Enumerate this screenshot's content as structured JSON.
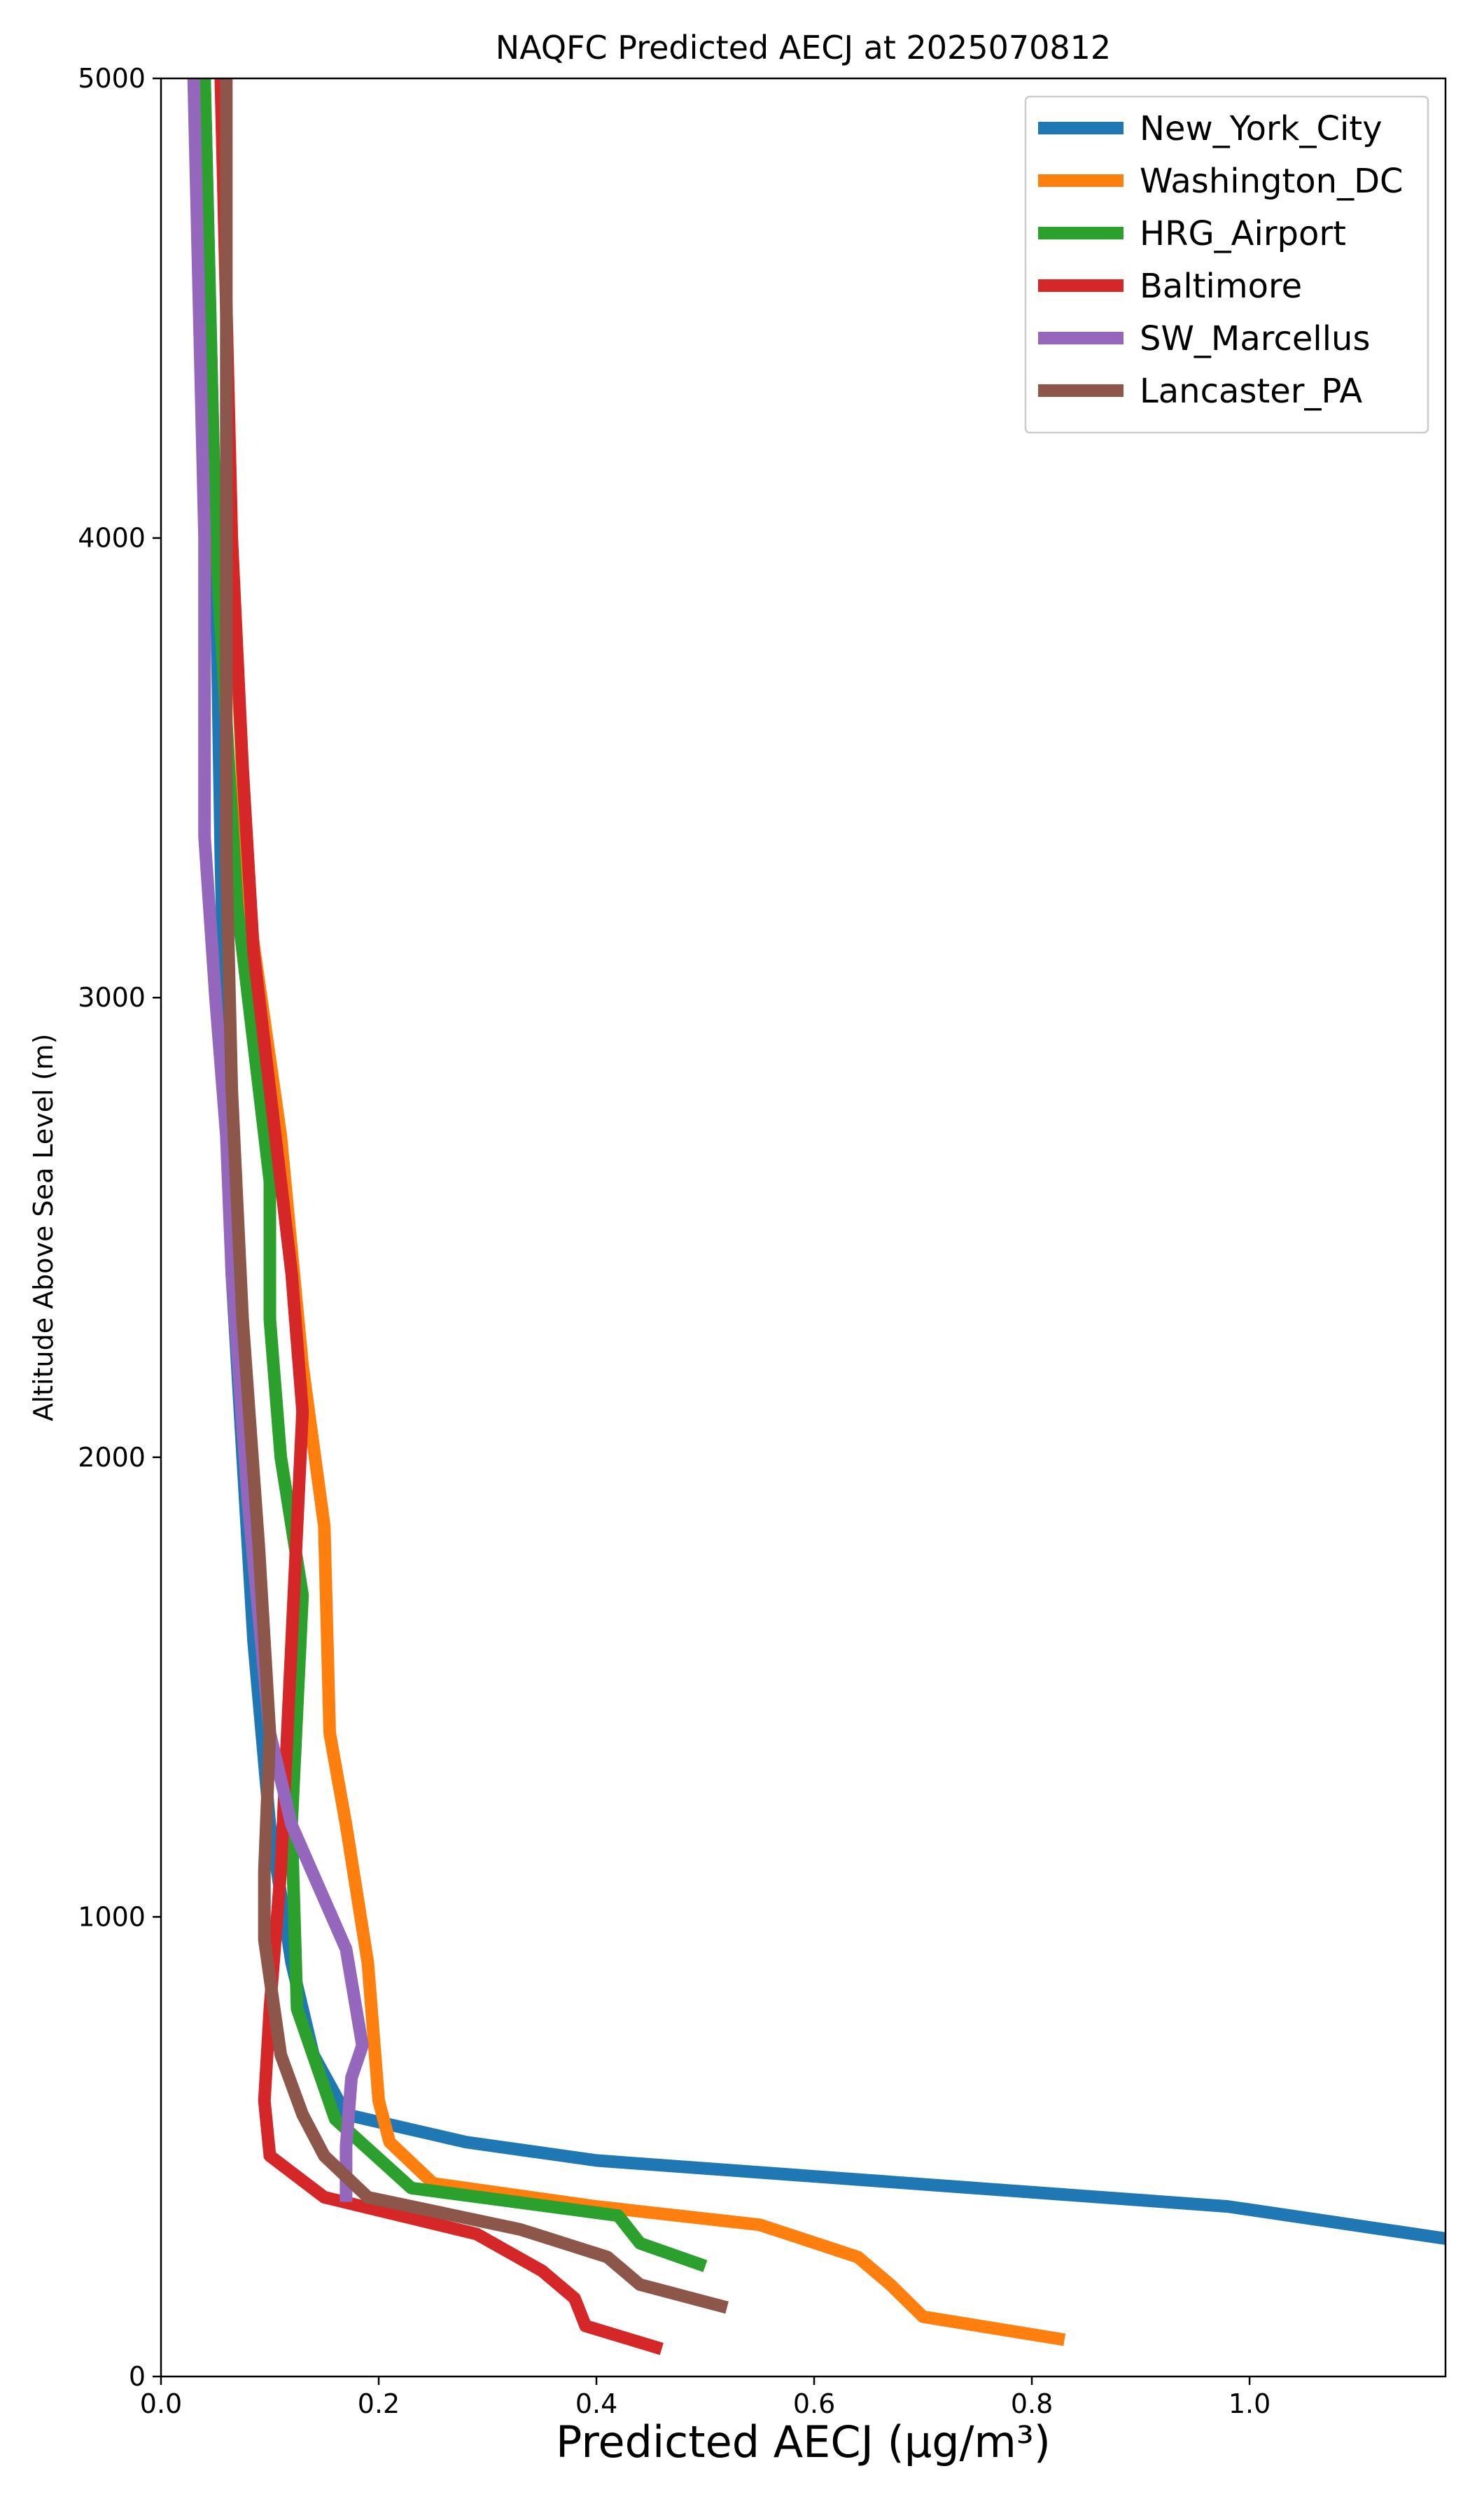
{
  "chart_data": {
    "type": "line",
    "title": "NAQFC Predicted AECJ at 2025070812",
    "xlabel": "Predicted AECJ (μg/m³)",
    "ylabel": "Altitude Above Sea Level (m)",
    "xlim": [
      0,
      1.18
    ],
    "ylim": [
      0,
      5000
    ],
    "xticks": [
      "0.0",
      "0.2",
      "0.4",
      "0.6",
      "0.8",
      "1.0"
    ],
    "yticks": [
      "0",
      "1000",
      "2000",
      "3000",
      "4000",
      "5000"
    ],
    "legend_position": "top-right",
    "grid": false,
    "series": [
      {
        "name": "New_York_City",
        "color": "#1f77b4",
        "points": [
          [
            1.18,
            300
          ],
          [
            0.98,
            370
          ],
          [
            0.4,
            470
          ],
          [
            0.28,
            510
          ],
          [
            0.17,
            570
          ],
          [
            0.14,
            700
          ],
          [
            0.12,
            900
          ],
          [
            0.1,
            1200
          ],
          [
            0.085,
            1600
          ],
          [
            0.075,
            2000
          ],
          [
            0.065,
            2400
          ],
          [
            0.06,
            2800
          ],
          [
            0.055,
            3300
          ],
          [
            0.05,
            4000
          ],
          [
            0.045,
            4500
          ],
          [
            0.04,
            5000
          ]
        ]
      },
      {
        "name": "Washington_DC",
        "color": "#ff7f0e",
        "points": [
          [
            0.83,
            80
          ],
          [
            0.7,
            130
          ],
          [
            0.67,
            200
          ],
          [
            0.64,
            260
          ],
          [
            0.55,
            330
          ],
          [
            0.4,
            370
          ],
          [
            0.25,
            420
          ],
          [
            0.21,
            510
          ],
          [
            0.2,
            600
          ],
          [
            0.19,
            900
          ],
          [
            0.17,
            1200
          ],
          [
            0.155,
            1400
          ],
          [
            0.15,
            1850
          ],
          [
            0.13,
            2200
          ],
          [
            0.11,
            2700
          ],
          [
            0.08,
            3200
          ],
          [
            0.065,
            4000
          ],
          [
            0.06,
            4500
          ],
          [
            0.055,
            5000
          ]
        ]
      },
      {
        "name": "HRG_Airport",
        "color": "#2ca02c",
        "points": [
          [
            0.5,
            240
          ],
          [
            0.44,
            290
          ],
          [
            0.42,
            350
          ],
          [
            0.23,
            410
          ],
          [
            0.16,
            560
          ],
          [
            0.125,
            800
          ],
          [
            0.12,
            1200
          ],
          [
            0.13,
            1700
          ],
          [
            0.11,
            2000
          ],
          [
            0.1,
            2300
          ],
          [
            0.1,
            2600
          ],
          [
            0.09,
            2800
          ],
          [
            0.07,
            3200
          ],
          [
            0.05,
            4000
          ],
          [
            0.045,
            4500
          ],
          [
            0.04,
            5000
          ]
        ]
      },
      {
        "name": "Baltimore",
        "color": "#d62728",
        "points": [
          [
            0.46,
            60
          ],
          [
            0.39,
            110
          ],
          [
            0.38,
            170
          ],
          [
            0.35,
            230
          ],
          [
            0.29,
            310
          ],
          [
            0.15,
            390
          ],
          [
            0.1,
            480
          ],
          [
            0.095,
            600
          ],
          [
            0.1,
            800
          ],
          [
            0.11,
            1100
          ],
          [
            0.12,
            1600
          ],
          [
            0.13,
            2100
          ],
          [
            0.12,
            2400
          ],
          [
            0.1,
            2800
          ],
          [
            0.085,
            3100
          ],
          [
            0.075,
            3500
          ],
          [
            0.065,
            4000
          ],
          [
            0.06,
            4500
          ],
          [
            0.055,
            5000
          ]
        ]
      },
      {
        "name": "SW_Marcellus",
        "color": "#9467bd",
        "points": [
          [
            0.17,
            380
          ],
          [
            0.17,
            500
          ],
          [
            0.175,
            650
          ],
          [
            0.185,
            720
          ],
          [
            0.17,
            930
          ],
          [
            0.12,
            1200
          ],
          [
            0.1,
            1400
          ],
          [
            0.08,
            1900
          ],
          [
            0.065,
            2400
          ],
          [
            0.06,
            2700
          ],
          [
            0.05,
            3000
          ],
          [
            0.04,
            3350
          ],
          [
            0.04,
            4000
          ],
          [
            0.035,
            4500
          ],
          [
            0.03,
            5000
          ]
        ]
      },
      {
        "name": "Lancaster_PA",
        "color": "#8c564b",
        "points": [
          [
            0.52,
            150
          ],
          [
            0.44,
            200
          ],
          [
            0.41,
            260
          ],
          [
            0.33,
            320
          ],
          [
            0.19,
            390
          ],
          [
            0.15,
            480
          ],
          [
            0.13,
            570
          ],
          [
            0.11,
            700
          ],
          [
            0.095,
            950
          ],
          [
            0.095,
            1100
          ],
          [
            0.1,
            1400
          ],
          [
            0.09,
            1800
          ],
          [
            0.075,
            2300
          ],
          [
            0.065,
            2800
          ],
          [
            0.06,
            3300
          ],
          [
            0.06,
            4000
          ],
          [
            0.06,
            4500
          ],
          [
            0.06,
            5000
          ]
        ]
      }
    ]
  }
}
